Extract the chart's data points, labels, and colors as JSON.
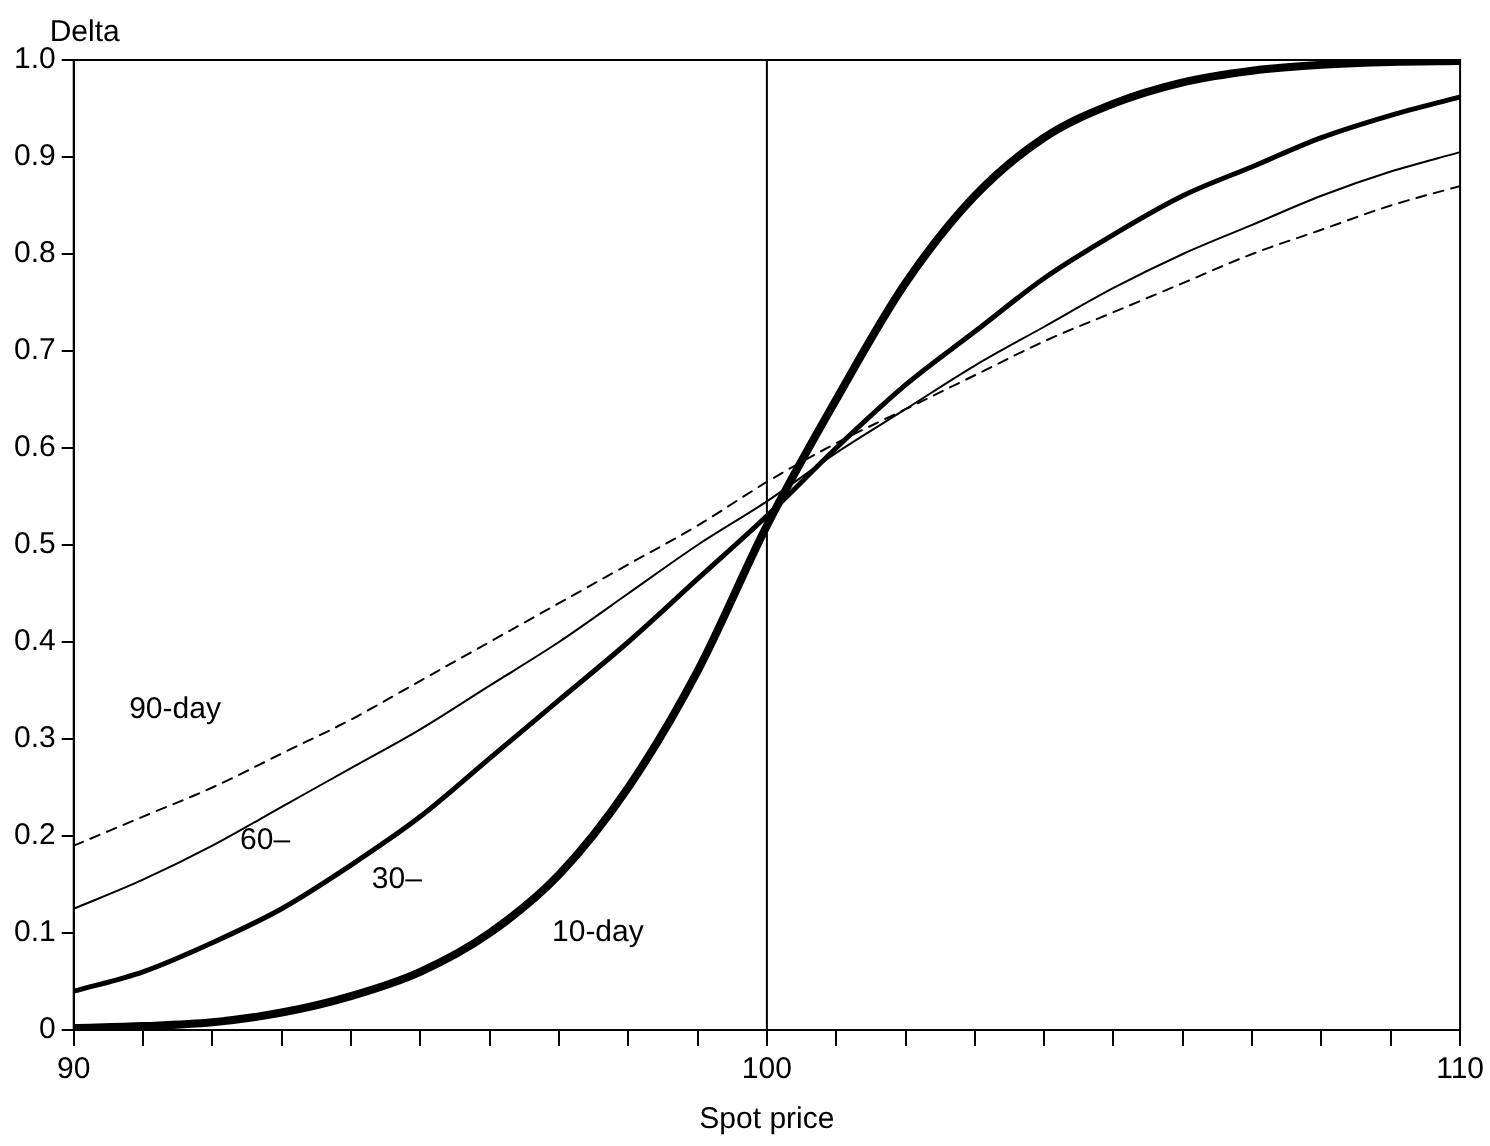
{
  "chart_data": {
    "type": "line",
    "xlabel": "Spot price",
    "ylabel": "Delta",
    "x": [
      90,
      91,
      92,
      93,
      94,
      95,
      96,
      97,
      98,
      99,
      100,
      101,
      102,
      103,
      104,
      105,
      106,
      107,
      108,
      109,
      110
    ],
    "series": [
      {
        "color": "#000000",
        "values": [
          0.002,
          0.004,
          0.008,
          0.018,
          0.035,
          0.06,
          0.1,
          0.16,
          0.25,
          0.37,
          0.52,
          0.65,
          0.77,
          0.86,
          0.92,
          0.955,
          0.977,
          0.989,
          0.995,
          0.998,
          0.999
        ]
      },
      {
        "color": "#000000",
        "values": [
          0.04,
          0.06,
          0.09,
          0.125,
          0.17,
          0.22,
          0.28,
          0.34,
          0.4,
          0.465,
          0.53,
          0.6,
          0.665,
          0.72,
          0.775,
          0.82,
          0.86,
          0.89,
          0.92,
          0.943,
          0.962
        ]
      },
      {
        "color": "#000000",
        "values": [
          0.125,
          0.155,
          0.19,
          0.23,
          0.27,
          0.31,
          0.355,
          0.4,
          0.45,
          0.5,
          0.545,
          0.595,
          0.64,
          0.685,
          0.725,
          0.765,
          0.8,
          0.83,
          0.86,
          0.885,
          0.905
        ]
      },
      {
        "color": "#000000",
        "line_style": "dashed",
        "values": [
          0.19,
          0.22,
          0.25,
          0.285,
          0.32,
          0.36,
          0.4,
          0.44,
          0.48,
          0.52,
          0.565,
          0.605,
          0.64,
          0.675,
          0.71,
          0.74,
          0.77,
          0.8,
          0.825,
          0.85,
          0.87
        ]
      }
    ],
    "xlim": [
      90,
      110
    ],
    "xticks": [
      90,
      {
        "value": 91,
        "label": null
      },
      {
        "value": 92,
        "label": null
      },
      {
        "value": 93,
        "label": null
      },
      {
        "value": 94,
        "label": null
      },
      {
        "value": 95,
        "label": null
      },
      {
        "value": 96,
        "label": null
      },
      {
        "value": 97,
        "label": null
      },
      {
        "value": 98,
        "label": null
      },
      {
        "value": 99,
        "label": null
      },
      100,
      {
        "value": 101,
        "label": null
      },
      {
        "value": 102,
        "label": null
      },
      {
        "value": 103,
        "label": null
      },
      {
        "value": 104,
        "label": null
      },
      {
        "value": 105,
        "label": null
      },
      {
        "value": 106,
        "label": null
      },
      {
        "value": 107,
        "label": null
      },
      {
        "value": 108,
        "label": null
      },
      {
        "value": 109,
        "label": null
      },
      110
    ],
    "ylim": [
      0,
      1
    ],
    "yticks": [
      0,
      0.1,
      0.2,
      0.3,
      0.4,
      0.5,
      0.6,
      0.7,
      0.8,
      0.9,
      {
        "value": 1,
        "label": "1.0"
      }
    ],
    "ref_lines": [
      {
        "axis": "x",
        "value": 100,
        "color": "#000000"
      }
    ],
    "annotations": [
      "90-day",
      "60–",
      "30–",
      "10-day"
    ],
    "grid": false,
    "legend": false,
    "marker": "none"
  }
}
